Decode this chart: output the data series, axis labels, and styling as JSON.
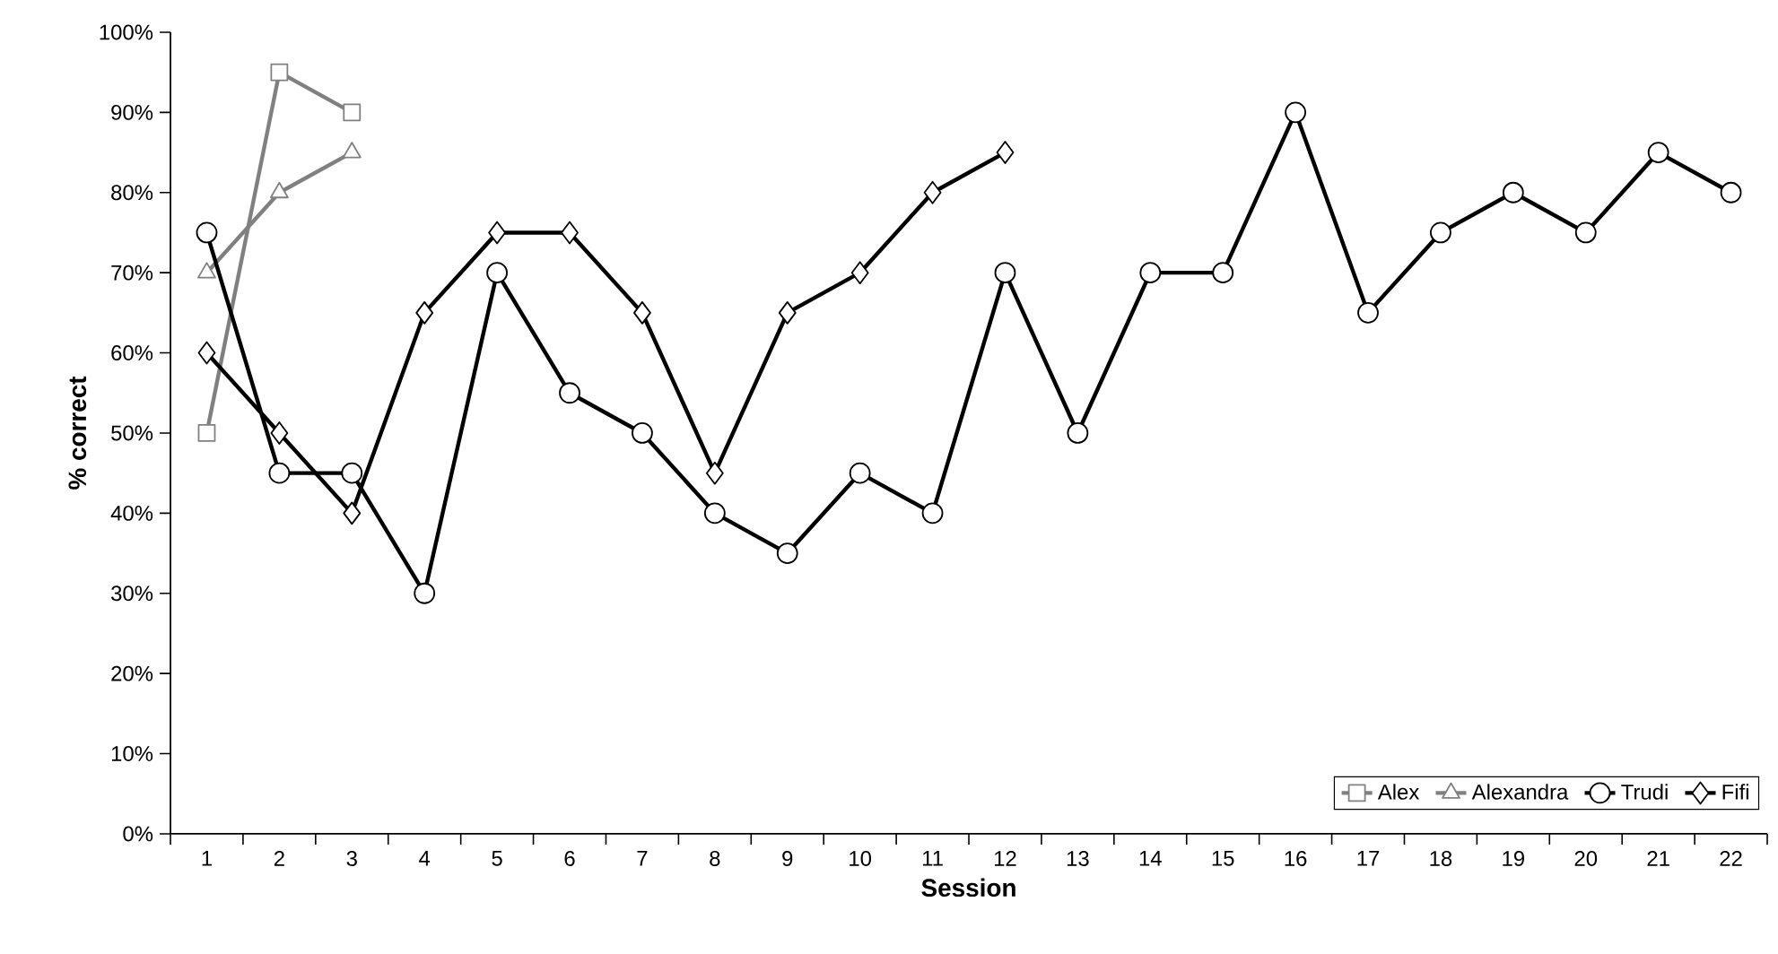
{
  "chart_data": {
    "type": "line",
    "xlabel": "Session",
    "ylabel": "% correct",
    "categories": [
      "1",
      "2",
      "3",
      "4",
      "5",
      "6",
      "7",
      "8",
      "9",
      "10",
      "11",
      "12",
      "13",
      "14",
      "15",
      "16",
      "17",
      "18",
      "19",
      "20",
      "21",
      "22"
    ],
    "ylim": [
      0,
      100
    ],
    "yticks": [
      {
        "value": 0,
        "label": "0%"
      },
      {
        "value": 10,
        "label": "10%"
      },
      {
        "value": 20,
        "label": "20%"
      },
      {
        "value": 30,
        "label": "30%"
      },
      {
        "value": 40,
        "label": "40%"
      },
      {
        "value": 50,
        "label": "50%"
      },
      {
        "value": 60,
        "label": "60%"
      },
      {
        "value": 70,
        "label": "70%"
      },
      {
        "value": 80,
        "label": "80%"
      },
      {
        "value": 90,
        "label": "90%"
      },
      {
        "value": 100,
        "label": "100%"
      }
    ],
    "grid": false,
    "legend": "bottom right",
    "line_style": "solid",
    "series": [
      {
        "name": "Alex",
        "color": "#808080",
        "marker": "square",
        "values": [
          50,
          95,
          90,
          null,
          null,
          null,
          null,
          null,
          null,
          null,
          null,
          null,
          null,
          null,
          null,
          null,
          null,
          null,
          null,
          null,
          null,
          null
        ]
      },
      {
        "name": "Alexandra",
        "color": "#808080",
        "marker": "triangle",
        "values": [
          70,
          80,
          85,
          null,
          null,
          null,
          null,
          null,
          null,
          null,
          null,
          null,
          null,
          null,
          null,
          null,
          null,
          null,
          null,
          null,
          null,
          null
        ]
      },
      {
        "name": "Trudi",
        "color": "#000000",
        "marker": "circle",
        "values": [
          75,
          45,
          45,
          30,
          70,
          55,
          50,
          40,
          35,
          45,
          40,
          70,
          50,
          70,
          70,
          90,
          65,
          75,
          80,
          75,
          85,
          80
        ]
      },
      {
        "name": "Fifi",
        "color": "#000000",
        "marker": "diamond",
        "values": [
          60,
          50,
          40,
          65,
          75,
          75,
          65,
          45,
          65,
          70,
          80,
          85,
          null,
          null,
          null,
          null,
          null,
          null,
          null,
          null,
          null,
          null
        ]
      }
    ]
  }
}
